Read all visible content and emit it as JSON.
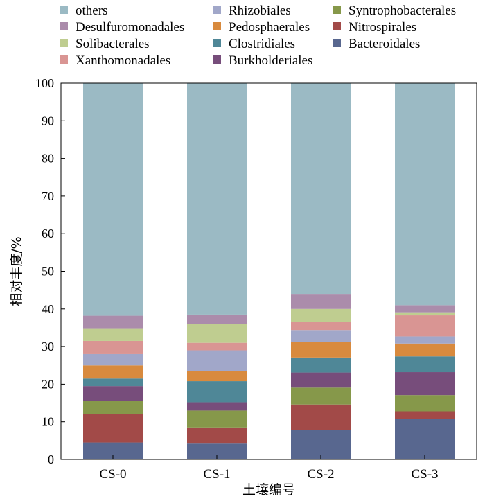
{
  "chart_data": {
    "type": "bar",
    "stacked": true,
    "categories": [
      "CS-0",
      "CS-1",
      "CS-2",
      "CS-3"
    ],
    "xlabel": "土壤编号",
    "ylabel": "相对丰度/%",
    "ylim": [
      0,
      100
    ],
    "yticks": [
      0,
      10,
      20,
      30,
      40,
      50,
      60,
      70,
      80,
      90,
      100
    ],
    "grid": false,
    "legend_position": "top",
    "legend_order": [
      "others",
      "Rhizobiales",
      "Syntrophobacterales",
      "Desulfuromonadales",
      "Pedosphaerales",
      "Nitrospirales",
      "Solibacterales",
      "Clostridiales",
      "Bacteroidales",
      "Xanthomonadales",
      "Burkholderiales"
    ],
    "series": [
      {
        "name": "Bacteroidales",
        "color": "#58678f",
        "values": [
          4.5,
          4.2,
          7.8,
          10.8
        ]
      },
      {
        "name": "Nitrospirales",
        "color": "#a24a48",
        "values": [
          7.5,
          4.3,
          6.8,
          2.0
        ]
      },
      {
        "name": "Syntrophobacterales",
        "color": "#86984a",
        "values": [
          3.5,
          4.5,
          4.5,
          4.3
        ]
      },
      {
        "name": "Burkholderiales",
        "color": "#774d7b",
        "values": [
          4.0,
          2.2,
          4.0,
          6.1
        ]
      },
      {
        "name": "Clostridiales",
        "color": "#4f8797",
        "values": [
          2.0,
          5.6,
          4.0,
          4.2
        ]
      },
      {
        "name": "Pedosphaerales",
        "color": "#d88a3e",
        "values": [
          3.5,
          2.7,
          4.2,
          3.4
        ]
      },
      {
        "name": "Rhizobiales",
        "color": "#a1a7c9",
        "values": [
          3.0,
          5.5,
          3.1,
          1.9
        ]
      },
      {
        "name": "Xanthomonadales",
        "color": "#d99593",
        "values": [
          3.5,
          2.0,
          2.1,
          5.6
        ]
      },
      {
        "name": "Solibacterales",
        "color": "#bfcd90",
        "values": [
          3.2,
          5.0,
          3.5,
          0.8
        ]
      },
      {
        "name": "Desulfuromonadales",
        "color": "#ab8cab",
        "values": [
          3.5,
          2.5,
          4.0,
          1.9
        ]
      },
      {
        "name": "others",
        "color": "#9bbac4",
        "values": [
          61.8,
          61.5,
          56.0,
          59.0
        ]
      }
    ]
  }
}
